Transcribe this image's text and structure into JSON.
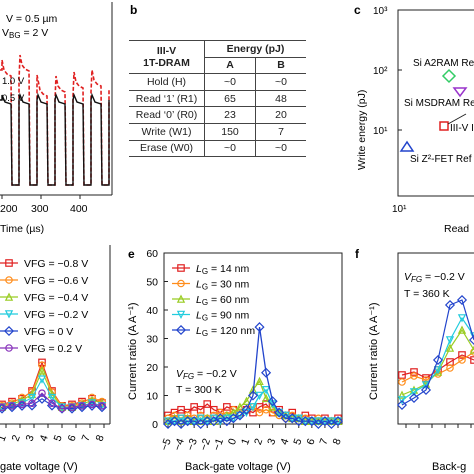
{
  "panel_labels": {
    "b": "b",
    "c": "c",
    "e": "e",
    "f": "f"
  },
  "panel_a": {
    "annotations": [
      "V = 0.5 µm",
      "VBG = 2 V",
      "1.0 V",
      "0.5 V"
    ],
    "ann1_text": "V = 0.5 µm",
    "ann2_pre": "V",
    "ann2_sub": "BG",
    "ann2_post": " = 2 V",
    "level_hi": "1.0 V",
    "level_lo": "0.5 V",
    "xticks": [
      "200",
      "300",
      "400"
    ],
    "xlabel": "Time (µs)"
  },
  "panel_b_table": {
    "header_col": "III-V\n1T-DRAM",
    "header_col_line1": "III-V",
    "header_col_line2": "1T-DRAM",
    "header_group": "Energy (pJ)",
    "col_a": "A",
    "col_b": "B",
    "rows": [
      {
        "op": "Hold (H)",
        "a": "~0",
        "b": "~0"
      },
      {
        "op": "Read ‘1’ (R1)",
        "a": "65",
        "b": "48"
      },
      {
        "op": "Read ‘0’ (R0)",
        "a": "23",
        "b": "20"
      },
      {
        "op": "Write (W1)",
        "a": "150",
        "b": "7"
      },
      {
        "op": "Erase (W0)",
        "a": "~0",
        "b": "~0"
      }
    ]
  },
  "panel_c": {
    "ylabel": "Write energy (pJ)",
    "ytick_labels": [
      "10³",
      "10²",
      "10¹"
    ],
    "xtick_label": "10¹",
    "xlabel": "Read",
    "labels": [
      "Si A2RAM Ref",
      "Si MSDRAM Re",
      "III-V I",
      "Si Z²-FET Ref"
    ],
    "colors": {
      "a2ram": "#33cc66",
      "msdram": "#9933cc",
      "iiiv": "#e02020",
      "z2fet": "#2244cc"
    }
  },
  "panel_d": {
    "legend": [
      "VFG = −0.8 V",
      "VFG = −0.6 V",
      "VFG = −0.4 V",
      "VFG = −0.2 V",
      "VFG = 0 V",
      "VFG = 0.2 V"
    ],
    "xticks": [
      "1",
      "2",
      "3",
      "4",
      "5",
      "6",
      "7",
      "8"
    ],
    "xlabel": "gate voltage (V)"
  },
  "chart_data": {
    "type": "line",
    "title": "",
    "xlabel": "Back-gate voltage (V)",
    "ylabel": "Current ratio (A A⁻¹)",
    "ylim": [
      0,
      60
    ],
    "yticks": [
      "0",
      "10",
      "20",
      "30",
      "40",
      "50",
      "60"
    ],
    "xticks": [
      "−5",
      "−4",
      "−3",
      "−2",
      "−1",
      "0",
      "1",
      "2",
      "3",
      "4",
      "5",
      "6",
      "7",
      "8"
    ],
    "x": [
      -5,
      -4.5,
      -4,
      -3.5,
      -3,
      -2.5,
      -2,
      -1.5,
      -1,
      -0.5,
      0,
      0.5,
      1,
      1.5,
      2,
      2.5,
      3,
      3.5,
      4,
      4.5,
      5,
      5.5,
      6,
      6.5,
      7,
      7.5,
      8
    ],
    "annotation_vfg": "VFG = −0.2 V",
    "annotation_t": "T = 300 K",
    "series": [
      {
        "name": "LG = 14 nm",
        "color": "#e02020",
        "values": [
          3,
          4,
          5,
          4,
          6,
          5,
          7,
          5,
          4,
          6,
          5,
          4,
          5,
          4,
          6,
          7,
          4,
          5,
          3,
          4,
          2,
          3,
          2,
          1,
          2,
          1,
          2
        ]
      },
      {
        "name": "LG = 30 nm",
        "color": "#ff8c1a",
        "values": [
          2,
          3,
          2,
          3,
          2,
          3,
          2,
          3,
          4,
          3,
          5,
          4,
          5,
          6,
          4,
          5,
          4,
          3,
          2,
          3,
          2,
          2,
          1,
          2,
          1,
          1,
          1
        ]
      },
      {
        "name": "LG = 60 nm",
        "color": "#99cc22",
        "values": [
          1,
          2,
          1,
          2,
          1,
          1,
          2,
          1,
          2,
          3,
          4,
          6,
          8,
          12,
          15,
          9,
          6,
          4,
          3,
          2,
          2,
          1,
          1,
          1,
          1,
          1,
          1
        ]
      },
      {
        "name": "LG = 90 nm",
        "color": "#22ccdd",
        "values": [
          1,
          1,
          2,
          1,
          1,
          2,
          1,
          2,
          1,
          2,
          2,
          3,
          4,
          6,
          10,
          12,
          7,
          4,
          3,
          2,
          2,
          1,
          1,
          1,
          1,
          1,
          1
        ]
      },
      {
        "name": "LG = 120 nm",
        "color": "#2244cc",
        "values": [
          0,
          1,
          0,
          1,
          1,
          0,
          1,
          1,
          2,
          1,
          2,
          3,
          5,
          10,
          34,
          18,
          8,
          4,
          2,
          2,
          1,
          1,
          1,
          0,
          1,
          0,
          1
        ]
      }
    ],
    "legend_labels": [
      {
        "pre": "L",
        "sub": "G",
        "post": " = 14 nm"
      },
      {
        "pre": "L",
        "sub": "G",
        "post": " = 30 nm"
      },
      {
        "pre": "L",
        "sub": "G",
        "post": " = 60 nm"
      },
      {
        "pre": "L",
        "sub": "G",
        "post": " = 90 nm"
      },
      {
        "pre": "L",
        "sub": "G",
        "post": " = 120 nm"
      }
    ]
  },
  "panel_f": {
    "annotation_vfg": "VFG = −0.2 V",
    "annotation_t": "T = 360 K",
    "ylabel": "Current ratio (A A⁻¹)",
    "xlabel": "Back-g"
  }
}
